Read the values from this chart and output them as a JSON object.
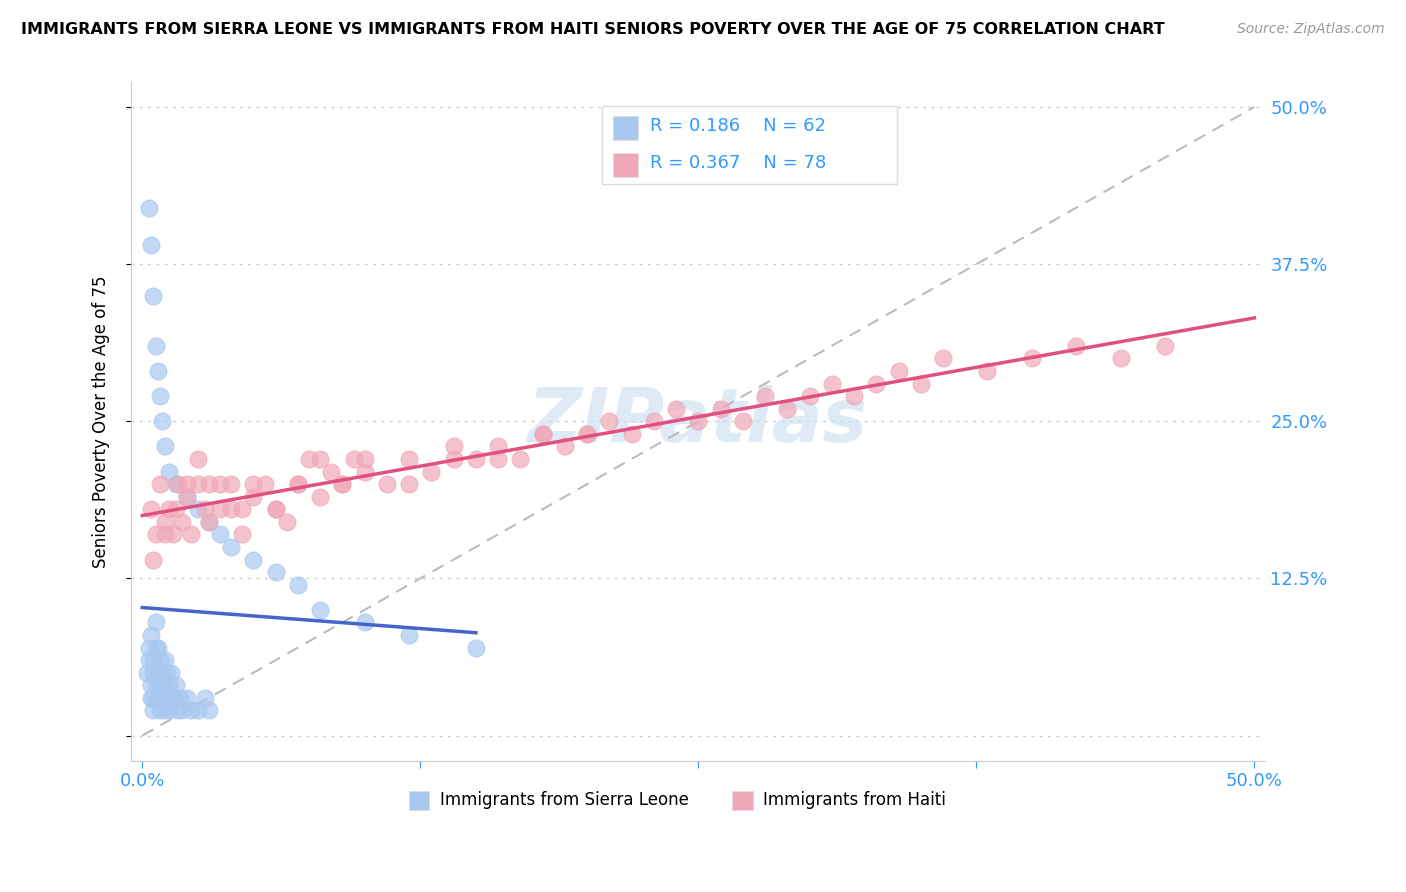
{
  "title": "IMMIGRANTS FROM SIERRA LEONE VS IMMIGRANTS FROM HAITI SENIORS POVERTY OVER THE AGE OF 75 CORRELATION CHART",
  "source": "Source: ZipAtlas.com",
  "ylabel": "Seniors Poverty Over the Age of 75",
  "xlim": [
    0.0,
    0.5
  ],
  "ylim": [
    0.0,
    0.5
  ],
  "xticks": [
    0.0,
    0.125,
    0.25,
    0.375,
    0.5
  ],
  "xtick_labels": [
    "0.0%",
    "",
    "",
    "",
    "50.0%"
  ],
  "yticks": [
    0.0,
    0.125,
    0.25,
    0.375,
    0.5
  ],
  "ytick_labels_right": [
    "",
    "12.5%",
    "25.0%",
    "37.5%",
    "50.0%"
  ],
  "legend_R1": "0.186",
  "legend_N1": "62",
  "legend_R2": "0.367",
  "legend_N2": "78",
  "color_sierra": "#a8c8f0",
  "color_haiti": "#f0a8b8",
  "color_line_sierra": "#4466cc",
  "color_line_haiti": "#e05080",
  "color_diag": "#bbbbbb",
  "watermark_color": "#c8dff0",
  "sierra_x": [
    0.002,
    0.003,
    0.003,
    0.004,
    0.004,
    0.004,
    0.005,
    0.005,
    0.005,
    0.005,
    0.006,
    0.006,
    0.006,
    0.007,
    0.007,
    0.007,
    0.008,
    0.008,
    0.008,
    0.009,
    0.009,
    0.01,
    0.01,
    0.01,
    0.011,
    0.011,
    0.012,
    0.012,
    0.013,
    0.013,
    0.014,
    0.015,
    0.016,
    0.017,
    0.018,
    0.02,
    0.022,
    0.025,
    0.028,
    0.03,
    0.003,
    0.004,
    0.005,
    0.006,
    0.007,
    0.008,
    0.009,
    0.01,
    0.012,
    0.015,
    0.02,
    0.025,
    0.03,
    0.035,
    0.04,
    0.05,
    0.06,
    0.07,
    0.08,
    0.1,
    0.12,
    0.15
  ],
  "sierra_y": [
    0.05,
    0.06,
    0.07,
    0.03,
    0.04,
    0.08,
    0.02,
    0.03,
    0.05,
    0.06,
    0.04,
    0.07,
    0.09,
    0.03,
    0.05,
    0.07,
    0.02,
    0.04,
    0.06,
    0.03,
    0.05,
    0.02,
    0.04,
    0.06,
    0.03,
    0.05,
    0.02,
    0.04,
    0.03,
    0.05,
    0.03,
    0.04,
    0.02,
    0.03,
    0.02,
    0.03,
    0.02,
    0.02,
    0.03,
    0.02,
    0.42,
    0.39,
    0.35,
    0.31,
    0.29,
    0.27,
    0.25,
    0.23,
    0.21,
    0.2,
    0.19,
    0.18,
    0.17,
    0.16,
    0.15,
    0.14,
    0.13,
    0.12,
    0.1,
    0.09,
    0.08,
    0.07
  ],
  "haiti_x": [
    0.004,
    0.006,
    0.008,
    0.01,
    0.012,
    0.014,
    0.016,
    0.018,
    0.02,
    0.022,
    0.025,
    0.028,
    0.03,
    0.035,
    0.04,
    0.045,
    0.05,
    0.055,
    0.06,
    0.065,
    0.07,
    0.075,
    0.08,
    0.085,
    0.09,
    0.095,
    0.1,
    0.11,
    0.12,
    0.13,
    0.14,
    0.15,
    0.16,
    0.17,
    0.18,
    0.19,
    0.2,
    0.21,
    0.22,
    0.23,
    0.24,
    0.25,
    0.26,
    0.27,
    0.28,
    0.29,
    0.3,
    0.31,
    0.32,
    0.33,
    0.34,
    0.35,
    0.36,
    0.38,
    0.4,
    0.42,
    0.44,
    0.46,
    0.005,
    0.01,
    0.015,
    0.02,
    0.025,
    0.03,
    0.035,
    0.04,
    0.045,
    0.05,
    0.06,
    0.07,
    0.08,
    0.09,
    0.1,
    0.12,
    0.14,
    0.16,
    0.18,
    0.2
  ],
  "haiti_y": [
    0.18,
    0.16,
    0.2,
    0.17,
    0.18,
    0.16,
    0.2,
    0.17,
    0.19,
    0.16,
    0.2,
    0.18,
    0.17,
    0.2,
    0.18,
    0.16,
    0.19,
    0.2,
    0.18,
    0.17,
    0.2,
    0.22,
    0.19,
    0.21,
    0.2,
    0.22,
    0.21,
    0.2,
    0.22,
    0.21,
    0.23,
    0.22,
    0.23,
    0.22,
    0.24,
    0.23,
    0.24,
    0.25,
    0.24,
    0.25,
    0.26,
    0.25,
    0.26,
    0.25,
    0.27,
    0.26,
    0.27,
    0.28,
    0.27,
    0.28,
    0.29,
    0.28,
    0.3,
    0.29,
    0.3,
    0.31,
    0.3,
    0.31,
    0.14,
    0.16,
    0.18,
    0.2,
    0.22,
    0.2,
    0.18,
    0.2,
    0.18,
    0.2,
    0.18,
    0.2,
    0.22,
    0.2,
    0.22,
    0.2,
    0.22,
    0.22,
    0.24,
    0.24
  ]
}
